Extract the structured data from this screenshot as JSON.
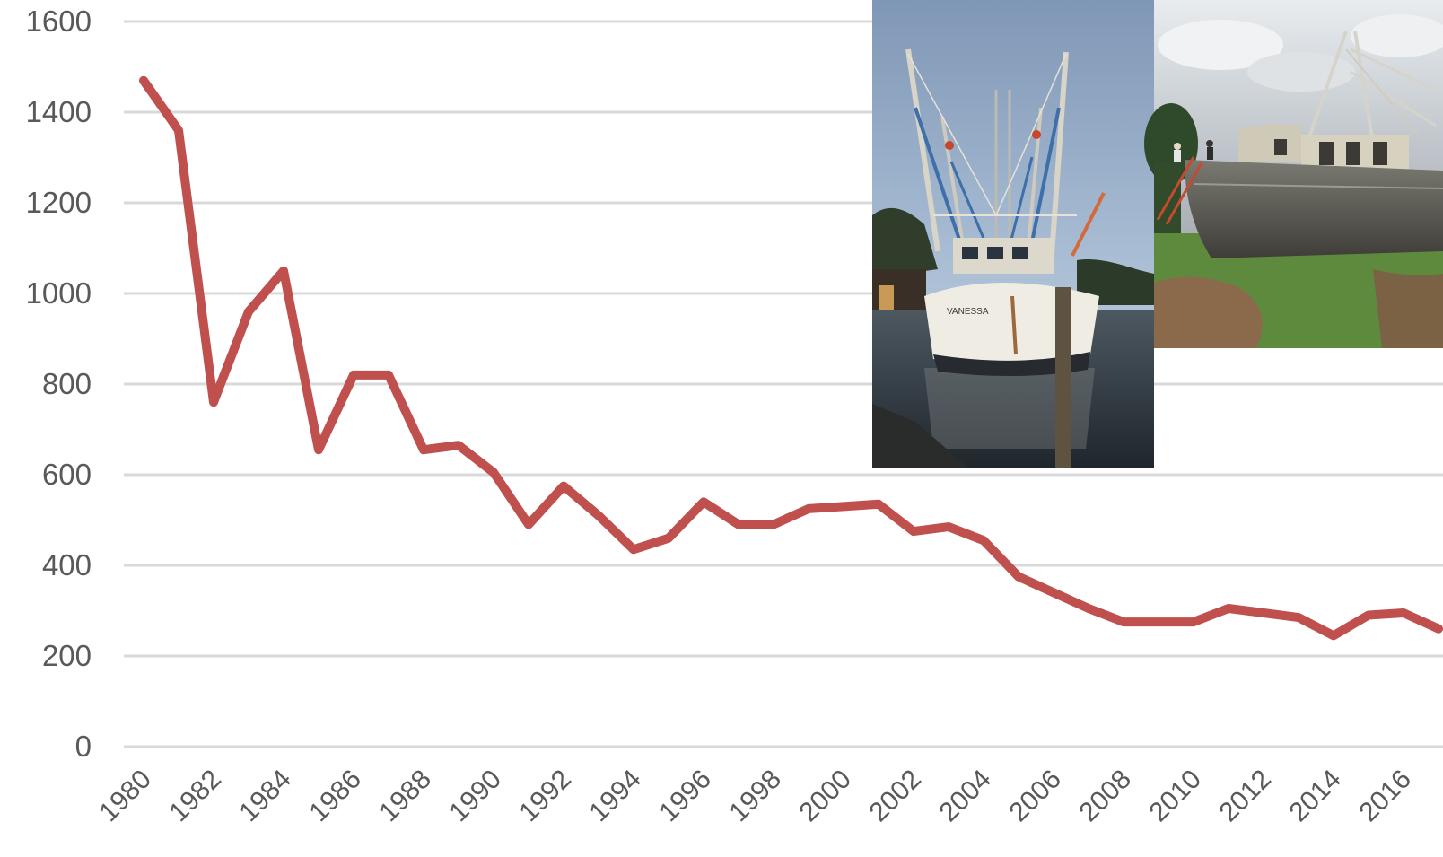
{
  "chart_data": {
    "type": "line",
    "title": "",
    "xlabel": "",
    "ylabel": "",
    "ylim": [
      0,
      1600
    ],
    "y_ticks": [
      "0",
      "200",
      "400",
      "600",
      "800",
      "1000",
      "1200",
      "1400",
      "1600"
    ],
    "x_tick_labels": [
      "1980",
      "1982",
      "1984",
      "1986",
      "1988",
      "1990",
      "1992",
      "1994",
      "1996",
      "1998",
      "2000",
      "2002",
      "2004",
      "2006",
      "2008",
      "2010",
      "2012",
      "2014",
      "2016"
    ],
    "grid": true,
    "legend": "none",
    "x": [
      1980,
      1981,
      1982,
      1983,
      1984,
      1985,
      1986,
      1987,
      1988,
      1989,
      1990,
      1991,
      1992,
      1993,
      1994,
      1995,
      1996,
      1997,
      1998,
      1999,
      2000,
      2001,
      2002,
      2003,
      2004,
      2005,
      2006,
      2007,
      2008,
      2009,
      2010,
      2011,
      2012,
      2013,
      2014,
      2015,
      2016,
      2017
    ],
    "series": [
      {
        "values": [
          1470,
          1360,
          760,
          960,
          1050,
          655,
          820,
          820,
          655,
          665,
          605,
          490,
          575,
          510,
          435,
          460,
          540,
          490,
          490,
          525,
          530,
          535,
          475,
          485,
          455,
          375,
          340,
          305,
          275,
          275,
          275,
          305,
          295,
          285,
          245,
          290,
          295,
          260
        ],
        "color": "#c0504d"
      }
    ]
  },
  "photos": [
    {
      "icon": "shrimp-boat-at-dock-photo",
      "boat_name": "VANESSA"
    },
    {
      "icon": "shrimp-boat-on-land-photo"
    }
  ]
}
